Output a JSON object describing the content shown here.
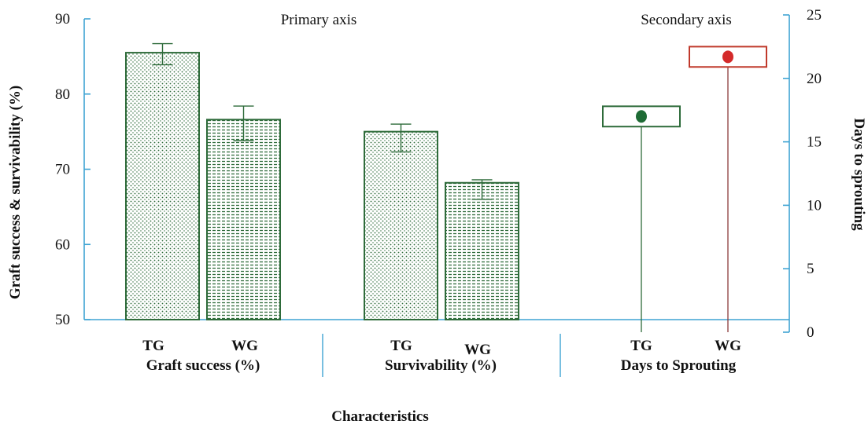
{
  "chart_data": {
    "type": "bar",
    "xlabel": "Characteristics",
    "primary_axis": {
      "title": "Graft success & survivability (%)",
      "ylim": [
        50,
        90
      ],
      "ticks": [
        "50",
        "60",
        "70",
        "80",
        "90"
      ],
      "label": "Primary axis"
    },
    "secondary_axis": {
      "title": "Days to sprouting",
      "ylim": [
        0,
        25
      ],
      "ticks": [
        "0",
        "5",
        "10",
        "15",
        "20",
        "25"
      ],
      "label": "Secondary axis"
    },
    "groups": [
      {
        "name": "Graft success (%)",
        "axis": "primary",
        "bars": [
          {
            "label": "TG",
            "value": 85.5,
            "err_low": 83.9,
            "err_high": 86.7,
            "pattern": "dots"
          },
          {
            "label": "WG",
            "value": 76.6,
            "err_low": 73.8,
            "err_high": 78.4,
            "pattern": "stripes"
          }
        ]
      },
      {
        "name": "Survivability (%)",
        "axis": "primary",
        "bars": [
          {
            "label": "TG",
            "value": 75.0,
            "err_low": 72.3,
            "err_high": 76.0,
            "pattern": "dots"
          },
          {
            "label": "WG",
            "value": 68.2,
            "err_low": 66.0,
            "err_high": 68.6,
            "pattern": "stripes"
          }
        ]
      },
      {
        "name": "Days to Sprouting",
        "axis": "secondary",
        "points": [
          {
            "label": "TG",
            "value": 17.0,
            "box_low": 16.2,
            "box_high": 17.8,
            "color": "#1e6b35",
            "box_color": "#2e6b3a"
          },
          {
            "label": "WG",
            "value": 21.7,
            "box_low": 20.9,
            "box_high": 22.5,
            "color": "#d42a2a",
            "box_color": "#c0392b"
          }
        ]
      }
    ],
    "colors": {
      "bar_stroke": "#2e6b3a",
      "axis": "#3fa4d3",
      "tg_stem": "#2e6b3a",
      "wg_stem": "#8b3b3b"
    }
  }
}
